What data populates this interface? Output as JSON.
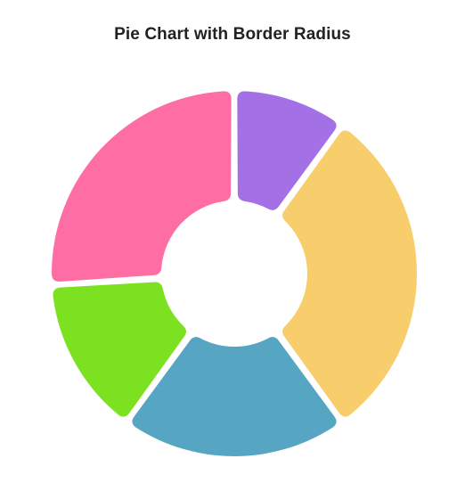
{
  "chart_data": {
    "type": "pie",
    "title": "Pie Chart with Border Radius",
    "donut": true,
    "legend": "none",
    "slices": [
      {
        "value": 10,
        "color": "#a370e6"
      },
      {
        "value": 30,
        "color": "#f8cd6b"
      },
      {
        "value": 20,
        "color": "#55a5c3"
      },
      {
        "value": 14,
        "color": "#7ce120"
      },
      {
        "value": 26,
        "color": "#fe6ea4"
      }
    ]
  }
}
